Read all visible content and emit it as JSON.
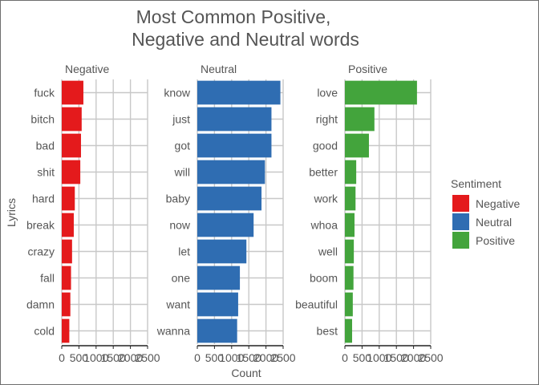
{
  "chart_data": {
    "type": "bar",
    "orientation": "horizontal",
    "title": "Most Common Positive,\nNegative and Neutral words",
    "xlabel": "Count",
    "ylabel": "Lyrics",
    "xlim": [
      0,
      2500
    ],
    "x_ticks": [
      0,
      500,
      1000,
      1500,
      2000,
      2500
    ],
    "x_tick_labels": [
      "0",
      "500",
      "1000",
      "1500",
      "2000",
      "2500"
    ],
    "grid": true,
    "legend": {
      "title": "Sentiment",
      "position": "right",
      "entries": [
        {
          "name": "Negative",
          "color": "#e41a1c"
        },
        {
          "name": "Neutral",
          "color": "#2f6db2"
        },
        {
          "name": "Positive",
          "color": "#43a43c"
        }
      ]
    },
    "panels": [
      {
        "name": "Negative",
        "color": "#e41a1c",
        "categories": [
          "fuck",
          "bitch",
          "bad",
          "shit",
          "hard",
          "break",
          "crazy",
          "fall",
          "damn",
          "cold"
        ],
        "values": [
          630,
          580,
          560,
          540,
          380,
          350,
          300,
          270,
          250,
          220
        ]
      },
      {
        "name": "Neutral",
        "color": "#2f6db2",
        "categories": [
          "know",
          "just",
          "got",
          "will",
          "baby",
          "now",
          "let",
          "one",
          "want",
          "wanna"
        ],
        "values": [
          2420,
          2160,
          2160,
          1970,
          1870,
          1640,
          1430,
          1240,
          1190,
          1160
        ]
      },
      {
        "name": "Positive",
        "color": "#43a43c",
        "categories": [
          "love",
          "right",
          "good",
          "better",
          "work",
          "whoa",
          "well",
          "boom",
          "beautiful",
          "best"
        ],
        "values": [
          2100,
          860,
          700,
          330,
          310,
          280,
          260,
          250,
          230,
          210
        ]
      }
    ]
  }
}
